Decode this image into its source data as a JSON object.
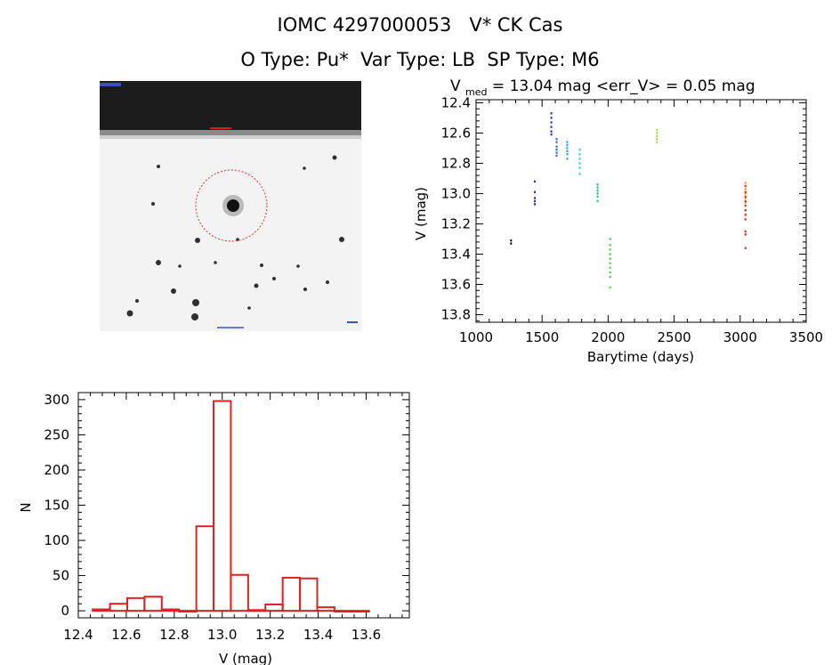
{
  "header": {
    "title": "IOMC 4297000053   V* CK Cas",
    "subtitle": "O Type: Pu*  Var Type: LB  SP Type: M6"
  },
  "image_stamp": {
    "description_icon": "sky-image-with-target-circle",
    "target_circle_color": "#e03030"
  },
  "chart_data": [
    {
      "type": "scatter",
      "title_main": "V",
      "title_sub": "med",
      "title_rest": " = 13.04 mag <err_V> = 0.05 mag",
      "xlabel": "Barytime (days)",
      "ylabel": "V (mag)",
      "xlim": [
        1000,
        3500
      ],
      "ylim": [
        13.85,
        12.38
      ],
      "y_inverted": true,
      "xticks": [
        1000,
        1500,
        2000,
        2500,
        3000,
        3500
      ],
      "yticks": [
        12.4,
        12.6,
        12.8,
        13.0,
        13.2,
        13.4,
        13.6,
        13.8
      ],
      "ytick_labels": [
        "12.4",
        "12.6",
        "12.8",
        "13.0",
        "13.2",
        "13.4",
        "13.6",
        "13.8"
      ],
      "groups": [
        {
          "x": 1265,
          "color": "#000000",
          "y": [
            13.31,
            13.33
          ]
        },
        {
          "x": 1445,
          "color": "#5a1a9a",
          "y": [
            12.92,
            12.99,
            13.03,
            13.05,
            13.07
          ]
        },
        {
          "x": 1570,
          "color": "#2030a0",
          "y": [
            12.47,
            12.5,
            12.53,
            12.56,
            12.59,
            12.61
          ]
        },
        {
          "x": 1610,
          "color": "#2a6ab8",
          "y": [
            12.64,
            12.66,
            12.69,
            12.71,
            12.73,
            12.75
          ]
        },
        {
          "x": 1690,
          "color": "#22a6d8",
          "y": [
            12.66,
            12.68,
            12.7,
            12.72,
            12.74,
            12.77
          ]
        },
        {
          "x": 1785,
          "color": "#36d0c8",
          "y": [
            12.71,
            12.74,
            12.77,
            12.8,
            12.83,
            12.87
          ]
        },
        {
          "x": 1920,
          "color": "#20c080",
          "y": [
            12.94,
            12.96,
            12.98,
            13.0,
            13.02,
            13.05
          ]
        },
        {
          "x": 2015,
          "color": "#40d040",
          "y": [
            13.3,
            13.34,
            13.37,
            13.4,
            13.43,
            13.46,
            13.49,
            13.52,
            13.55,
            13.62
          ]
        },
        {
          "x": 2370,
          "color": "#a0e030",
          "y": [
            12.58,
            12.6,
            12.62,
            12.64,
            12.66
          ]
        },
        {
          "x": 3040,
          "color": "#ff9a00",
          "y": [
            12.93,
            12.97,
            13.0,
            13.03,
            13.06
          ]
        },
        {
          "x": 3040,
          "color": "#e02010",
          "y": [
            12.95,
            12.99,
            13.02,
            13.05,
            13.08,
            13.11,
            13.14,
            13.17,
            13.25,
            13.27,
            13.36
          ]
        }
      ]
    },
    {
      "type": "bar",
      "xlabel": "V (mag)",
      "ylabel": "N",
      "xlim": [
        12.4,
        13.78
      ],
      "ylim": [
        -10,
        310
      ],
      "xticks": [
        12.4,
        12.6,
        12.8,
        13.0,
        13.2,
        13.4,
        13.6
      ],
      "xtick_labels": [
        "12.4",
        "12.6",
        "12.8",
        "13.0",
        "13.2",
        "13.4",
        "13.6"
      ],
      "yticks": [
        0,
        50,
        100,
        150,
        200,
        250,
        300
      ],
      "bar_color": "#dd2222",
      "bin_width": 0.072,
      "bin_starts": [
        12.46,
        12.532,
        12.604,
        12.676,
        12.748,
        12.82,
        12.892,
        12.964,
        13.036,
        13.108,
        13.18,
        13.252,
        13.324,
        13.396,
        13.468,
        13.54
      ],
      "values": [
        2,
        10,
        18,
        20,
        2,
        0,
        120,
        298,
        51,
        1,
        9,
        47,
        46,
        5,
        0,
        0
      ]
    }
  ]
}
